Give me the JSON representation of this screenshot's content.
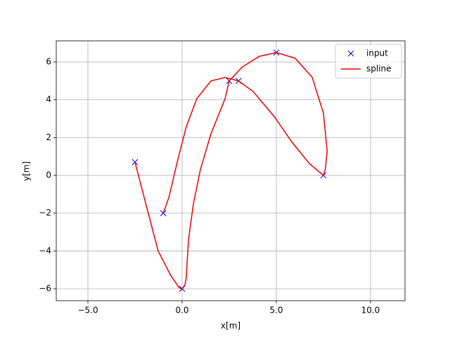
{
  "chart_data": {
    "type": "line",
    "xlabel": "x[m]",
    "ylabel": "y[m]",
    "series": [
      {
        "name": "input",
        "color": "#0000cc",
        "marker": "x",
        "line": false,
        "x": [
          -2.5,
          0.0,
          2.5,
          5.0,
          7.5,
          3.0,
          -1.0
        ],
        "values": [
          0.7,
          -6,
          5,
          6.5,
          0.0,
          5.0,
          -2.0
        ]
      },
      {
        "name": "spline",
        "color": "#ee0000",
        "marker": null,
        "line": true,
        "x": [
          -2.5,
          -1.9,
          -1.27,
          -0.6,
          -0.15,
          0.0,
          0.15,
          0.22,
          0.34,
          0.6,
          0.97,
          1.53,
          2.28,
          2.5,
          3.2,
          4.1,
          5.0,
          6.0,
          6.9,
          7.5,
          7.7,
          7.6,
          7.5,
          6.75,
          5.8,
          4.9,
          3.77,
          3.0,
          2.28,
          1.53,
          0.78,
          0.22,
          -0.26,
          -0.7,
          -1.0
        ],
        "values": [
          0.7,
          -1.6,
          -4.0,
          -5.3,
          -5.95,
          -6.0,
          -5.8,
          -5.4,
          -3.4,
          -1.5,
          0.3,
          2.2,
          4.06,
          5.0,
          5.74,
          6.3,
          6.5,
          6.2,
          5.2,
          3.3,
          1.27,
          0.33,
          0.0,
          0.63,
          1.8,
          3.1,
          4.44,
          5.0,
          5.18,
          5.0,
          4.06,
          2.57,
          0.7,
          -1.16,
          -2.0
        ]
      }
    ],
    "xlim": [
      -6.68,
      11.83
    ],
    "ylim": [
      -6.63,
      7.12
    ],
    "xticks": [
      {
        "value": -5,
        "label": "−5.0"
      },
      {
        "value": 0,
        "label": "0.0"
      },
      {
        "value": 5,
        "label": "5.0"
      },
      {
        "value": 10,
        "label": "10.0"
      }
    ],
    "yticks": [
      {
        "value": -6,
        "label": "−6"
      },
      {
        "value": -4,
        "label": "−4"
      },
      {
        "value": -2,
        "label": "−2"
      },
      0,
      2,
      4,
      6
    ],
    "grid": true,
    "legend": "upper-right"
  }
}
